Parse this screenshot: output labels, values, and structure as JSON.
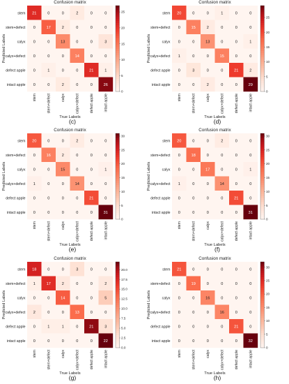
{
  "chart_data": [
    {
      "type": "heatmap",
      "panel_label": "(c)",
      "title": "Confusion matrix",
      "xlabel": "True Labels",
      "ylabel": "Predicted Labels",
      "row_labels": [
        "stem",
        "stem+defect",
        "calyx",
        "calyx+defect",
        "defect apple",
        "intact apple"
      ],
      "col_labels": [
        "stem",
        "stem+defect",
        "calyx",
        "calyx+defect",
        "defect apple",
        "intact apple"
      ],
      "matrix": [
        [
          21,
          0,
          0,
          2,
          0,
          0
        ],
        [
          0,
          17,
          2,
          0,
          0,
          0
        ],
        [
          0,
          0,
          13,
          0,
          0,
          3
        ],
        [
          0,
          0,
          0,
          14,
          0,
          0
        ],
        [
          0,
          1,
          0,
          0,
          21,
          1
        ],
        [
          0,
          0,
          2,
          0,
          0,
          26
        ]
      ],
      "colorbar": {
        "min": 0,
        "max": 27,
        "ticks": [
          "0",
          "5",
          "10",
          "15",
          "20",
          "25"
        ],
        "tick_values": [
          0,
          5,
          10,
          15,
          20,
          25
        ]
      }
    },
    {
      "type": "heatmap",
      "panel_label": "(d)",
      "title": "Confusion matrix",
      "xlabel": "True Labels",
      "ylabel": "Predicted Labels",
      "row_labels": [
        "stem",
        "stem+defect",
        "calyx",
        "calyx+defect",
        "defect apple",
        "intact apple"
      ],
      "col_labels": [
        "stem",
        "stem+defect",
        "calyx",
        "calyx+defect",
        "defect apple",
        "intact apple"
      ],
      "matrix": [
        [
          20,
          0,
          0,
          1,
          0,
          0
        ],
        [
          0,
          15,
          2,
          0,
          0,
          0
        ],
        [
          0,
          0,
          13,
          0,
          0,
          1
        ],
        [
          1,
          0,
          0,
          15,
          0,
          0
        ],
        [
          0,
          3,
          0,
          0,
          21,
          2
        ],
        [
          0,
          0,
          2,
          0,
          0,
          29
        ]
      ],
      "colorbar": {
        "min": 0,
        "max": 29,
        "ticks": [
          "0",
          "5",
          "10",
          "15",
          "20",
          "25"
        ],
        "tick_values": [
          0,
          5,
          10,
          15,
          20,
          25
        ]
      }
    },
    {
      "type": "heatmap",
      "panel_label": "(e)",
      "title": "Confusion matrix",
      "xlabel": "True Labels",
      "ylabel": "Predicted Labels",
      "row_labels": [
        "stem",
        "stem+defect",
        "calyx",
        "calyx+defect",
        "defect apple",
        "intact apple"
      ],
      "col_labels": [
        "stem",
        "stem+defect",
        "calyx",
        "calyx+defect",
        "defect apple",
        "intact apple"
      ],
      "matrix": [
        [
          20,
          0,
          0,
          2,
          0,
          0
        ],
        [
          0,
          16,
          2,
          0,
          0,
          0
        ],
        [
          0,
          0,
          15,
          0,
          0,
          1
        ],
        [
          1,
          0,
          0,
          14,
          0,
          0
        ],
        [
          0,
          0,
          0,
          0,
          21,
          0
        ],
        [
          0,
          0,
          0,
          0,
          0,
          31
        ]
      ],
      "colorbar": {
        "min": 0,
        "max": 31,
        "ticks": [
          "0",
          "5",
          "10",
          "15",
          "20",
          "25",
          "30"
        ],
        "tick_values": [
          0,
          5,
          10,
          15,
          20,
          25,
          30
        ]
      }
    },
    {
      "type": "heatmap",
      "panel_label": "(f)",
      "title": "Confusion matrix",
      "xlabel": "True Labels",
      "ylabel": "Predicted Labels",
      "row_labels": [
        "stem",
        "stem+defect",
        "calyx",
        "calyx+defect",
        "defect apple",
        "intact apple"
      ],
      "col_labels": [
        "stem",
        "stem+defect",
        "calyx",
        "calyx+defect",
        "defect apple",
        "intact apple"
      ],
      "matrix": [
        [
          20,
          0,
          0,
          2,
          0,
          0
        ],
        [
          0,
          18,
          0,
          0,
          0,
          0
        ],
        [
          0,
          0,
          17,
          0,
          0,
          1
        ],
        [
          1,
          0,
          0,
          14,
          0,
          0
        ],
        [
          0,
          0,
          0,
          0,
          21,
          0
        ],
        [
          0,
          0,
          0,
          0,
          0,
          31
        ]
      ],
      "colorbar": {
        "min": 0,
        "max": 31,
        "ticks": [
          "0",
          "5",
          "10",
          "15",
          "20",
          "25",
          "30"
        ],
        "tick_values": [
          0,
          5,
          10,
          15,
          20,
          25,
          30
        ]
      }
    },
    {
      "type": "heatmap",
      "panel_label": "(g)",
      "title": "Confusion matrix",
      "xlabel": "True Labels",
      "ylabel": "Predicted Labels",
      "row_labels": [
        "stem",
        "stem+defect",
        "calyx",
        "calyx+defect",
        "defect apple",
        "intact apple"
      ],
      "col_labels": [
        "stem",
        "stem+defect",
        "calyx",
        "calyx+defect",
        "defect apple",
        "intact apple"
      ],
      "matrix": [
        [
          18,
          0,
          0,
          3,
          0,
          0
        ],
        [
          1,
          17,
          2,
          0,
          0,
          2
        ],
        [
          0,
          0,
          14,
          0,
          0,
          5
        ],
        [
          2,
          0,
          0,
          13,
          0,
          0
        ],
        [
          0,
          1,
          1,
          0,
          21,
          3
        ],
        [
          0,
          0,
          0,
          0,
          0,
          22
        ]
      ],
      "colorbar": {
        "min": 0,
        "max": 22,
        "ticks": [
          "0.0",
          "2.5",
          "5.0",
          "7.5",
          "10.0",
          "12.5",
          "15.0",
          "17.5",
          "20.0"
        ],
        "tick_values": [
          0,
          2.5,
          5,
          7.5,
          10,
          12.5,
          15,
          17.5,
          20
        ]
      }
    },
    {
      "type": "heatmap",
      "panel_label": "(h)",
      "title": "Confusion matrix",
      "xlabel": "True Labels",
      "ylabel": "Predicted Labels",
      "row_labels": [
        "stem",
        "stem+defect",
        "calyx",
        "calyx+defect",
        "defect apple",
        "intact apple"
      ],
      "col_labels": [
        "stem",
        "stem+defect",
        "calyx",
        "calyx+defect",
        "defect apple",
        "intact apple"
      ],
      "matrix": [
        [
          21,
          0,
          0,
          0,
          0,
          0
        ],
        [
          0,
          19,
          0,
          0,
          0,
          0
        ],
        [
          0,
          0,
          16,
          0,
          0,
          0
        ],
        [
          0,
          0,
          0,
          16,
          0,
          0
        ],
        [
          0,
          0,
          0,
          0,
          21,
          0
        ],
        [
          0,
          0,
          0,
          0,
          0,
          32
        ]
      ],
      "colorbar": {
        "min": 0,
        "max": 32,
        "ticks": [
          "0",
          "5",
          "10",
          "15",
          "20",
          "25",
          "30"
        ],
        "tick_values": [
          0,
          5,
          10,
          15,
          20,
          25,
          30
        ]
      }
    }
  ],
  "colors": {
    "low": "#fff5f0",
    "mid": "#fb6a4a",
    "high": "#67000d",
    "text_dark": "#222222",
    "text_light": "#ffffff"
  }
}
